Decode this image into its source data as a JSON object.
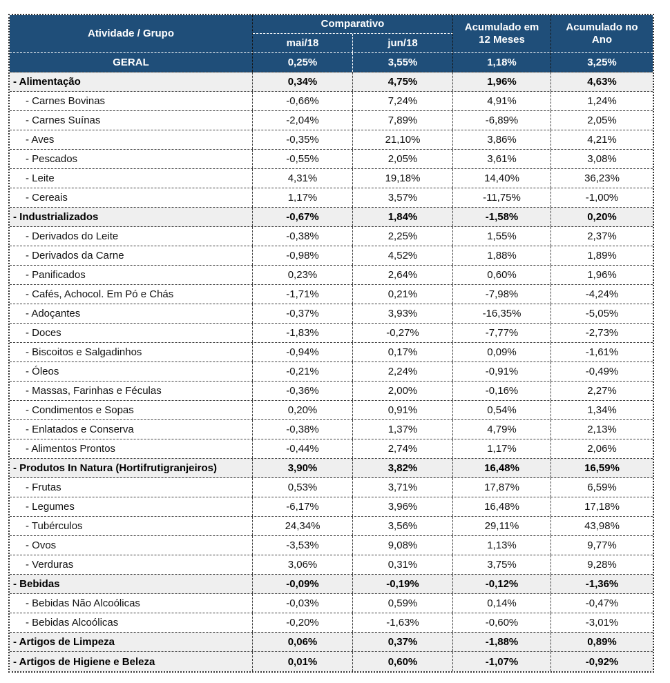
{
  "colors": {
    "header_bg": "#1F4E79",
    "header_text": "#FFFFFF",
    "category_row_bg": "#EFEFEF",
    "body_row_bg": "#FFFFFF",
    "body_text": "#111111",
    "border_dark": "#3C3C3C",
    "border_light": "#FFFFFF"
  },
  "chart_data": {
    "type": "table",
    "header": {
      "activity": "Atividade / Grupo",
      "comparativo": "Comparativo",
      "mai": "mai/18",
      "jun": "jun/18",
      "acc12_line1": "Acumulado em",
      "acc12_line2": "12 Meses",
      "accyear_line1": "Acumulado no",
      "accyear_line2": "Ano"
    },
    "geral": {
      "label": "GERAL",
      "values": [
        "0,25%",
        "3,55%",
        "1,18%",
        "3,25%"
      ]
    },
    "rows": [
      {
        "label": "- Alimentação",
        "bold": true,
        "level": 0,
        "values": [
          "0,34%",
          "4,75%",
          "1,96%",
          "4,63%"
        ]
      },
      {
        "label": "- Carnes Bovinas",
        "bold": false,
        "level": 1,
        "values": [
          "-0,66%",
          "7,24%",
          "4,91%",
          "1,24%"
        ]
      },
      {
        "label": "- Carnes Suínas",
        "bold": false,
        "level": 1,
        "values": [
          "-2,04%",
          "7,89%",
          "-6,89%",
          "2,05%"
        ]
      },
      {
        "label": "- Aves",
        "bold": false,
        "level": 1,
        "values": [
          "-0,35%",
          "21,10%",
          "3,86%",
          "4,21%"
        ]
      },
      {
        "label": "- Pescados",
        "bold": false,
        "level": 1,
        "values": [
          "-0,55%",
          "2,05%",
          "3,61%",
          "3,08%"
        ]
      },
      {
        "label": "- Leite",
        "bold": false,
        "level": 1,
        "values": [
          "4,31%",
          "19,18%",
          "14,40%",
          "36,23%"
        ]
      },
      {
        "label": "- Cereais",
        "bold": false,
        "level": 1,
        "values": [
          "1,17%",
          "3,57%",
          "-11,75%",
          "-1,00%"
        ]
      },
      {
        "label": "- Industrializados",
        "bold": true,
        "level": 0,
        "values": [
          "-0,67%",
          "1,84%",
          "-1,58%",
          "0,20%"
        ]
      },
      {
        "label": "- Derivados do Leite",
        "bold": false,
        "level": 1,
        "values": [
          "-0,38%",
          "2,25%",
          "1,55%",
          "2,37%"
        ]
      },
      {
        "label": "- Derivados da Carne",
        "bold": false,
        "level": 1,
        "values": [
          "-0,98%",
          "4,52%",
          "1,88%",
          "1,89%"
        ]
      },
      {
        "label": "- Panificados",
        "bold": false,
        "level": 1,
        "values": [
          "0,23%",
          "2,64%",
          "0,60%",
          "1,96%"
        ]
      },
      {
        "label": "- Cafés, Achocol. Em Pó e Chás",
        "bold": false,
        "level": 1,
        "values": [
          "-1,71%",
          "0,21%",
          "-7,98%",
          "-4,24%"
        ]
      },
      {
        "label": "- Adoçantes",
        "bold": false,
        "level": 1,
        "values": [
          "-0,37%",
          "3,93%",
          "-16,35%",
          "-5,05%"
        ]
      },
      {
        "label": "- Doces",
        "bold": false,
        "level": 1,
        "values": [
          "-1,83%",
          "-0,27%",
          "-7,77%",
          "-2,73%"
        ]
      },
      {
        "label": "- Biscoitos e Salgadinhos",
        "bold": false,
        "level": 1,
        "values": [
          "-0,94%",
          "0,17%",
          "0,09%",
          "-1,61%"
        ]
      },
      {
        "label": "- Óleos",
        "bold": false,
        "level": 1,
        "values": [
          "-0,21%",
          "2,24%",
          "-0,91%",
          "-0,49%"
        ]
      },
      {
        "label": "- Massas, Farinhas e Féculas",
        "bold": false,
        "level": 1,
        "values": [
          "-0,36%",
          "2,00%",
          "-0,16%",
          "2,27%"
        ]
      },
      {
        "label": "- Condimentos e Sopas",
        "bold": false,
        "level": 1,
        "values": [
          "0,20%",
          "0,91%",
          "0,54%",
          "1,34%"
        ]
      },
      {
        "label": "- Enlatados e Conserva",
        "bold": false,
        "level": 1,
        "values": [
          "-0,38%",
          "1,37%",
          "4,79%",
          "2,13%"
        ]
      },
      {
        "label": "- Alimentos Prontos",
        "bold": false,
        "level": 1,
        "values": [
          "-0,44%",
          "2,74%",
          "1,17%",
          "2,06%"
        ]
      },
      {
        "label": "- Produtos In Natura (Hortifrutigranjeiros)",
        "bold": true,
        "level": 0,
        "values": [
          "3,90%",
          "3,82%",
          "16,48%",
          "16,59%"
        ]
      },
      {
        "label": "- Frutas",
        "bold": false,
        "level": 1,
        "values": [
          "0,53%",
          "3,71%",
          "17,87%",
          "6,59%"
        ]
      },
      {
        "label": "- Legumes",
        "bold": false,
        "level": 1,
        "values": [
          "-6,17%",
          "3,96%",
          "16,48%",
          "17,18%"
        ]
      },
      {
        "label": "- Tubérculos",
        "bold": false,
        "level": 1,
        "values": [
          "24,34%",
          "3,56%",
          "29,11%",
          "43,98%"
        ]
      },
      {
        "label": "- Ovos",
        "bold": false,
        "level": 1,
        "values": [
          "-3,53%",
          "9,08%",
          "1,13%",
          "9,77%"
        ]
      },
      {
        "label": "- Verduras",
        "bold": false,
        "level": 1,
        "values": [
          "3,06%",
          "0,31%",
          "3,75%",
          "9,28%"
        ]
      },
      {
        "label": "- Bebidas",
        "bold": true,
        "level": 0,
        "values": [
          "-0,09%",
          "-0,19%",
          "-0,12%",
          "-1,36%"
        ]
      },
      {
        "label": "- Bebidas Não Alcoólicas",
        "bold": false,
        "level": 1,
        "values": [
          "-0,03%",
          "0,59%",
          "0,14%",
          "-0,47%"
        ]
      },
      {
        "label": "- Bebidas Alcoólicas",
        "bold": false,
        "level": 1,
        "values": [
          "-0,20%",
          "-1,63%",
          "-0,60%",
          "-3,01%"
        ]
      },
      {
        "label": "- Artigos de Limpeza",
        "bold": true,
        "level": 0,
        "values": [
          "0,06%",
          "0,37%",
          "-1,88%",
          "0,89%"
        ]
      },
      {
        "label": "- Artigos de Higiene e Beleza",
        "bold": true,
        "level": 0,
        "values": [
          "0,01%",
          "0,60%",
          "-1,07%",
          "-0,92%"
        ]
      }
    ]
  }
}
